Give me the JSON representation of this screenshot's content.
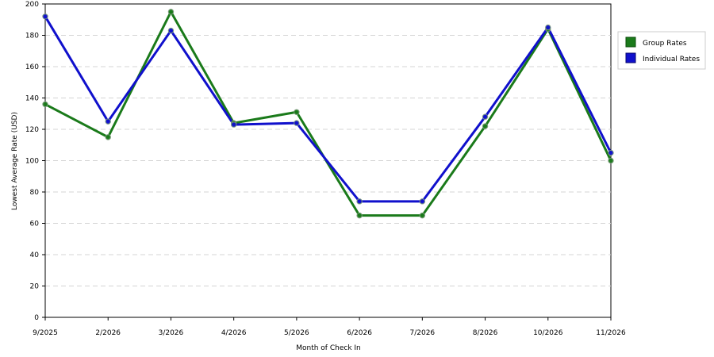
{
  "chart_data": {
    "type": "line",
    "categories": [
      "9/2025",
      "2/2026",
      "3/2026",
      "4/2026",
      "5/2026",
      "6/2026",
      "7/2026",
      "8/2026",
      "10/2026",
      "11/2026"
    ],
    "series": [
      {
        "name": "Group Rates",
        "color": "#1a7a1a",
        "values": [
          136,
          115,
          195,
          124,
          131,
          65,
          65,
          122,
          184,
          100
        ]
      },
      {
        "name": "Individual Rates",
        "color": "#1010cc",
        "values": [
          192,
          125,
          183,
          123,
          124,
          74,
          74,
          128,
          185,
          105
        ]
      }
    ],
    "xlabel": "Month of Check In",
    "ylabel": "Lowest Average Rate (USD)",
    "ylim": [
      0,
      200
    ],
    "yticks": [
      0,
      20,
      40,
      60,
      80,
      100,
      120,
      140,
      160,
      180,
      200
    ],
    "grid": "horizontal dashed",
    "legend": "right"
  }
}
